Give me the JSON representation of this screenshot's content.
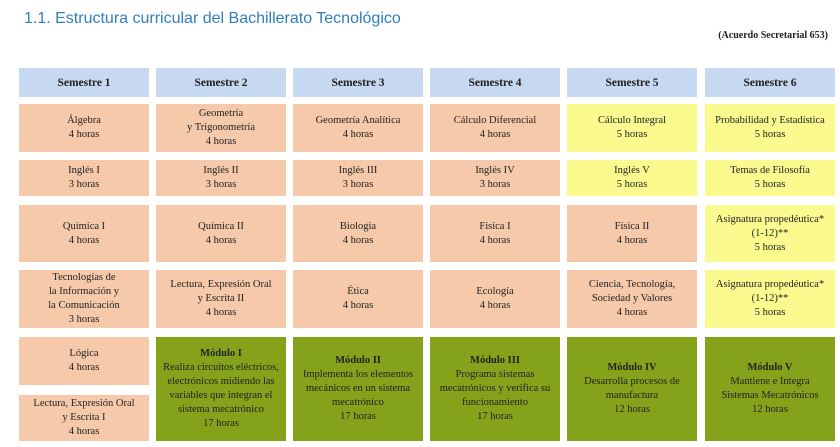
{
  "title": "1.1. Estructura curricular del Bachillerato Tecnológico",
  "reference": "(Acuerdo Secretarial 653)",
  "colors": {
    "header": "#c6d9f1",
    "basic": "#f5c9a9",
    "propedeutic": "#fafa8e",
    "professional": "#84a21a",
    "title": "#2f7fbf"
  },
  "headers": [
    "Semestre 1",
    "Semestre 2",
    "Semestre 3",
    "Semestre 4",
    "Semestre 5",
    "Semestre 6"
  ],
  "columns": [
    [
      {
        "name": "Álgebra",
        "hours": "4 horas"
      },
      {
        "name": "Inglés I",
        "hours": "3 horas"
      },
      {
        "name": "Química I",
        "hours": "4 horas"
      },
      {
        "name": "Tecnologías de\nla Información y\nla Comunicación",
        "hours": "3 horas"
      },
      {
        "name": "Lógica",
        "hours": "4 horas"
      },
      {
        "name": "Lectura, Expresión Oral\ny Escrita I",
        "hours": "4 horas"
      }
    ],
    [
      {
        "name": "Geometría\ny Trigonometría",
        "hours": "4 horas"
      },
      {
        "name": "Inglés II",
        "hours": "3 horas"
      },
      {
        "name": "Química II",
        "hours": "4 horas"
      },
      {
        "name": "Lectura, Expresión Oral\ny Escrita II",
        "hours": "4 horas"
      },
      {
        "title": "Módulo I",
        "name": "Realiza circuitos eléctricos,\nelectrónicos midiendo las\nvariables que integran el\nsistema mecatrónico",
        "hours": "17 horas"
      }
    ],
    [
      {
        "name": "Geometría Analítica",
        "hours": "4 horas"
      },
      {
        "name": "Inglés III",
        "hours": "3 horas"
      },
      {
        "name": "Biología",
        "hours": "4 horas"
      },
      {
        "name": "Ética",
        "hours": "4 horas"
      },
      {
        "title": "Módulo II",
        "name": "Implementa los elementos\nmecánicos en un sistema\nmecatrónico",
        "hours": "17 horas"
      }
    ],
    [
      {
        "name": "Cálculo Diferencial",
        "hours": "4 horas"
      },
      {
        "name": "Inglés IV",
        "hours": "3 horas"
      },
      {
        "name": "Física I",
        "hours": "4 horas"
      },
      {
        "name": "Ecología",
        "hours": "4 horas"
      },
      {
        "title": "Módulo III",
        "name": "Programa sistemas\nmecatrónicos y verifica su\nfuncionamiento",
        "hours": "17 horas"
      }
    ],
    [
      {
        "name": "Cálculo Integral",
        "hours": "5 horas"
      },
      {
        "name": "Inglés V",
        "hours": "5 horas"
      },
      {
        "name": "Física II",
        "hours": "4 horas"
      },
      {
        "name": "Ciencia, Tecnología,\nSociedad y Valores",
        "hours": "4 horas"
      },
      {
        "title": "Módulo IV",
        "name": "Desarrolla procesos de\nmanufactura",
        "hours": "12 horas"
      }
    ],
    [
      {
        "name": "Probabilidad y Estadística",
        "hours": "5 horas"
      },
      {
        "name": "Temas de Filosofía",
        "hours": "5 horas"
      },
      {
        "name": "Asignatura propedéutica*\n(1-12)**",
        "hours": "5 horas"
      },
      {
        "name": "Asignatura propedéutica*\n(1-12)**",
        "hours": "5 horas"
      },
      {
        "title": "Módulo V",
        "name": "Mantiene e Integra\nSistemas Mecatrónicos",
        "hours": "12 horas"
      }
    ]
  ]
}
